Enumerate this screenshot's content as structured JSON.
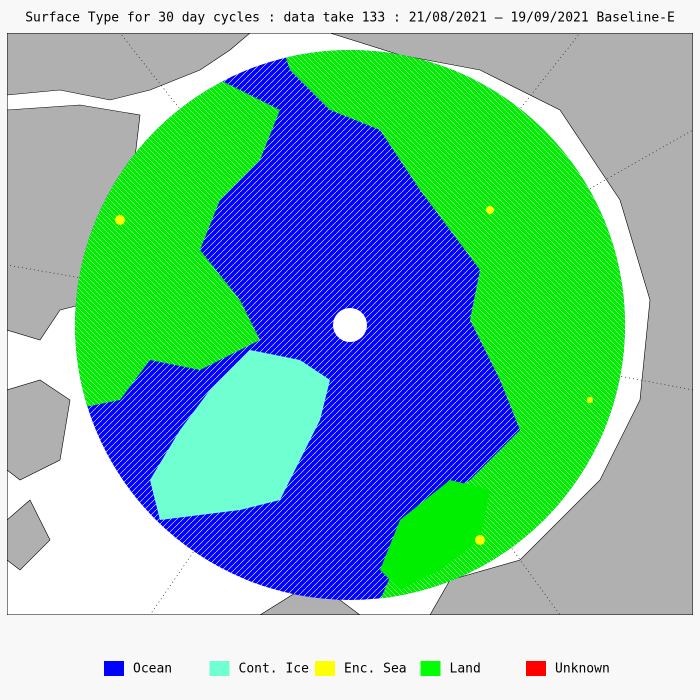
{
  "title": "Surface Type for 30 day cycles : data take 133 : 21/08/2021 — 19/09/2021 Baseline-E",
  "legend": [
    {
      "label": "Ocean",
      "color": "#0000ff"
    },
    {
      "label": "Cont. Ice",
      "color": "#70ffd0"
    },
    {
      "label": "Enc. Sea",
      "color": "#ffff00"
    },
    {
      "label": "Land",
      "color": "#00ff00"
    },
    {
      "label": "Unknown",
      "color": "#ff0000"
    }
  ]
}
